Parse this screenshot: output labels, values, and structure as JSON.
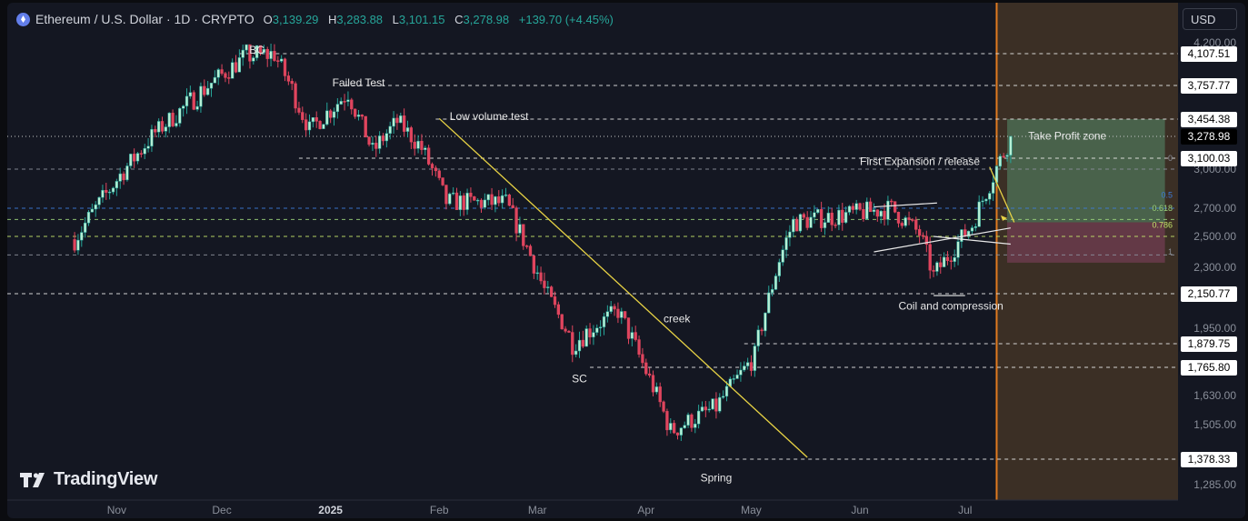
{
  "header": {
    "symbol_title": "Ethereum / U.S. Dollar · 1D · CRYPTO",
    "open_label": "O",
    "open": "3,139.29",
    "high_label": "H",
    "high": "3,283.88",
    "low_label": "L",
    "low": "3,101.15",
    "close_label": "C",
    "close": "3,278.98",
    "change": "+139.70 (+4.45%)"
  },
  "currency_button": "USD",
  "logo_text": "TradingView",
  "colors": {
    "up": "#26a69a",
    "up_body": "#b7f0d5",
    "down": "#e0455e",
    "trendline": "#e8d345",
    "vline": "#e07a20",
    "future_zone": "#3b2f25",
    "tp_zone": "#4c6b52",
    "sl_zone": "#6b3b4c"
  },
  "chart_data": {
    "type": "candlestick",
    "x_axis_labels": [
      "Nov",
      "Dec",
      "2025",
      "Feb",
      "Mar",
      "Apr",
      "May",
      "Jun",
      "Jul"
    ],
    "y_axis_ticks": [
      "4,200.00",
      "3,000.00",
      "2,700.00",
      "2,500.00",
      "2,300.00",
      "1,950.00",
      "1,630.00",
      "1,505.00",
      "1,285.00"
    ],
    "y_axis_badges": [
      "4,107.51",
      "3,757.77",
      "3,454.38",
      "3,278.98",
      "3,100.03",
      "2,150.77",
      "1,879.75",
      "1,765.80",
      "1,378.33"
    ],
    "current_price": 3278.98,
    "horizontal_levels": [
      4107.51,
      3757.77,
      3454.38,
      3100.03,
      3000,
      2700,
      2620,
      2500,
      2380,
      2150.77,
      1879.75,
      1765.8,
      1378.33
    ],
    "fib_labels": [
      "0",
      "0.5",
      "0.618",
      "0.786",
      "1"
    ],
    "annotations": [
      "BC",
      "Failed Test",
      "Low volume test",
      "creek",
      "SC",
      "Spring",
      "First Expansion / release",
      "Coil and compression",
      "Take Profit zone"
    ],
    "anchors": [
      {
        "date": "2024-10-20",
        "price": 2480
      },
      {
        "date": "2024-11-12",
        "price": 3320
      },
      {
        "date": "2024-12-08",
        "price": 4080
      },
      {
        "date": "2024-12-16",
        "price": 4100
      },
      {
        "date": "2024-12-26",
        "price": 3350
      },
      {
        "date": "2025-01-06",
        "price": 3700
      },
      {
        "date": "2025-01-13",
        "price": 3150
      },
      {
        "date": "2025-01-20",
        "price": 3430
      },
      {
        "date": "2025-01-27",
        "price": 3180
      },
      {
        "date": "2025-02-03",
        "price": 2750
      },
      {
        "date": "2025-02-20",
        "price": 2740
      },
      {
        "date": "2025-03-03",
        "price": 2170
      },
      {
        "date": "2025-03-11",
        "price": 1880
      },
      {
        "date": "2025-03-24",
        "price": 2050
      },
      {
        "date": "2025-04-08",
        "price": 1480
      },
      {
        "date": "2025-04-21",
        "price": 1580
      },
      {
        "date": "2025-05-02",
        "price": 1820
      },
      {
        "date": "2025-05-09",
        "price": 2350
      },
      {
        "date": "2025-05-13",
        "price": 2600
      },
      {
        "date": "2025-06-10",
        "price": 2700
      },
      {
        "date": "2025-06-18",
        "price": 2520
      },
      {
        "date": "2025-06-22",
        "price": 2250
      },
      {
        "date": "2025-07-03",
        "price": 2580
      },
      {
        "date": "2025-07-09",
        "price": 2950
      },
      {
        "date": "2025-07-14",
        "price": 3278.98
      }
    ]
  }
}
